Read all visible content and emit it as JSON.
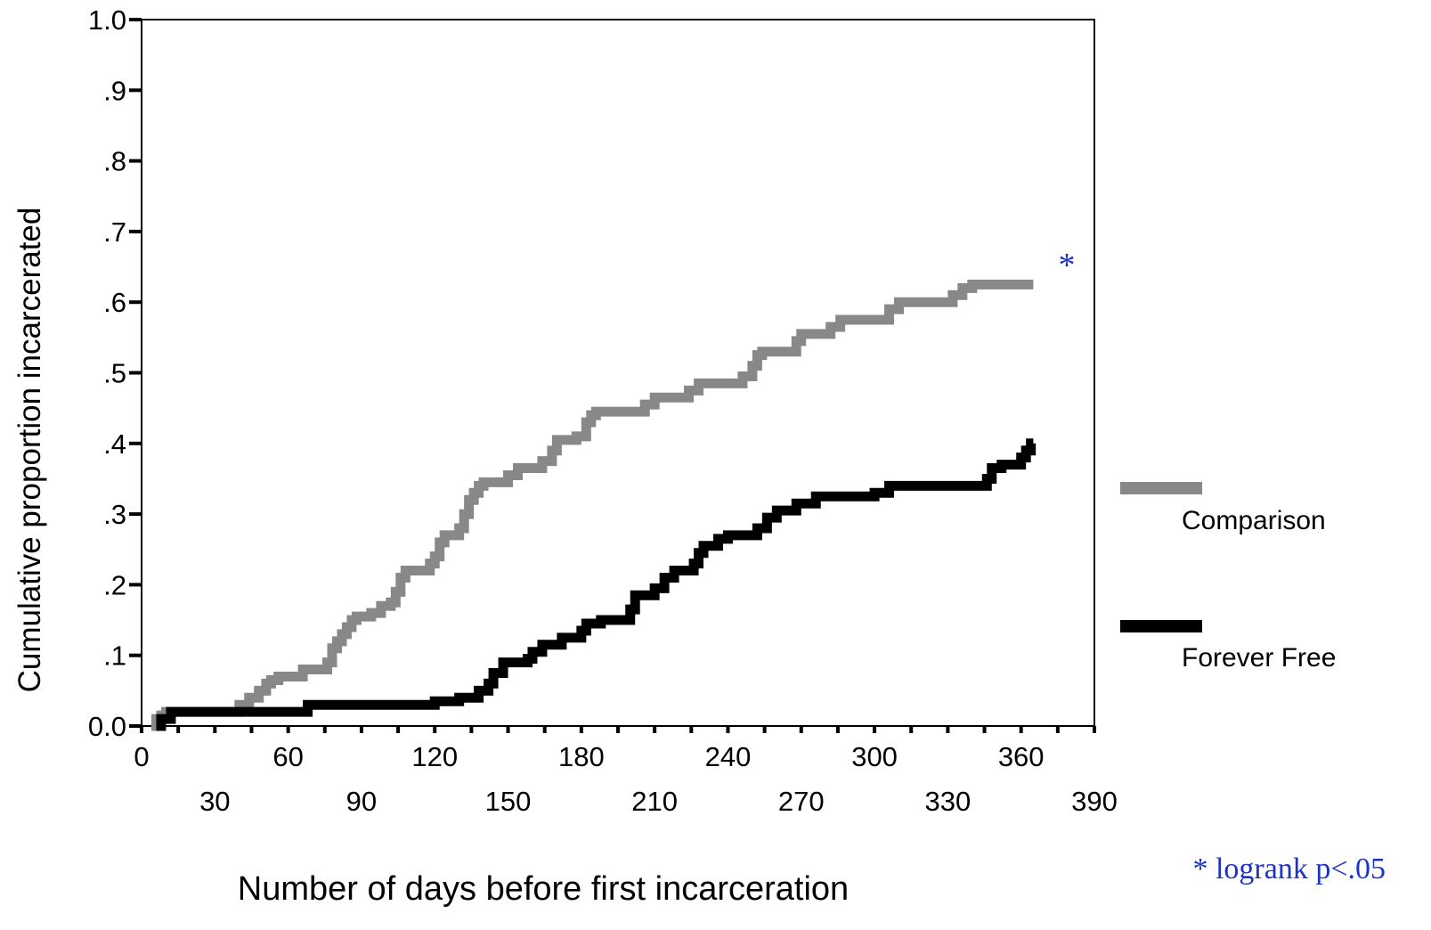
{
  "chart_data": {
    "type": "line",
    "step": true,
    "title": "",
    "xlabel": "Number of days before first incarceration",
    "ylabel": "Cumulative proportion incarcerated",
    "xlim": [
      0,
      390
    ],
    "ylim": [
      0,
      1.0
    ],
    "x_ticks_row1": [
      "0",
      "60",
      "120",
      "180",
      "240",
      "300",
      "360"
    ],
    "x_ticks_row2": [
      "30",
      "90",
      "150",
      "210",
      "270",
      "330",
      "390"
    ],
    "y_ticks": [
      {
        "value": 0.0,
        "label": "0.0"
      },
      {
        "value": 0.1,
        "label": ".1"
      },
      {
        "value": 0.2,
        "label": ".2"
      },
      {
        "value": 0.3,
        "label": ".3"
      },
      {
        "value": 0.4,
        "label": ".4"
      },
      {
        "value": 0.5,
        "label": ".5"
      },
      {
        "value": 0.6,
        "label": ".6"
      },
      {
        "value": 0.7,
        "label": ".7"
      },
      {
        "value": 0.8,
        "label": ".8"
      },
      {
        "value": 0.9,
        "label": ".9"
      },
      {
        "value": 1.0,
        "label": "1.0"
      }
    ],
    "grid": false,
    "legend_position": "right",
    "series": [
      {
        "name": "Comparison",
        "color": "#888888",
        "points": [
          [
            4,
            0.0
          ],
          [
            6,
            0.01
          ],
          [
            8,
            0.015
          ],
          [
            10,
            0.02
          ],
          [
            38,
            0.02
          ],
          [
            40,
            0.03
          ],
          [
            44,
            0.04
          ],
          [
            48,
            0.05
          ],
          [
            51,
            0.06
          ],
          [
            53,
            0.065
          ],
          [
            56,
            0.07
          ],
          [
            64,
            0.07
          ],
          [
            66,
            0.08
          ],
          [
            76,
            0.09
          ],
          [
            78,
            0.11
          ],
          [
            80,
            0.12
          ],
          [
            82,
            0.13
          ],
          [
            84,
            0.14
          ],
          [
            86,
            0.15
          ],
          [
            88,
            0.155
          ],
          [
            94,
            0.16
          ],
          [
            98,
            0.17
          ],
          [
            102,
            0.175
          ],
          [
            104,
            0.19
          ],
          [
            106,
            0.21
          ],
          [
            108,
            0.22
          ],
          [
            118,
            0.23
          ],
          [
            120,
            0.24
          ],
          [
            122,
            0.26
          ],
          [
            124,
            0.27
          ],
          [
            130,
            0.28
          ],
          [
            132,
            0.3
          ],
          [
            134,
            0.32
          ],
          [
            136,
            0.33
          ],
          [
            138,
            0.34
          ],
          [
            140,
            0.345
          ],
          [
            150,
            0.355
          ],
          [
            154,
            0.365
          ],
          [
            164,
            0.375
          ],
          [
            168,
            0.39
          ],
          [
            170,
            0.405
          ],
          [
            178,
            0.41
          ],
          [
            182,
            0.43
          ],
          [
            184,
            0.44
          ],
          [
            186,
            0.445
          ],
          [
            206,
            0.455
          ],
          [
            210,
            0.465
          ],
          [
            224,
            0.475
          ],
          [
            228,
            0.485
          ],
          [
            246,
            0.495
          ],
          [
            250,
            0.51
          ],
          [
            252,
            0.525
          ],
          [
            254,
            0.53
          ],
          [
            268,
            0.545
          ],
          [
            270,
            0.555
          ],
          [
            282,
            0.565
          ],
          [
            286,
            0.575
          ],
          [
            306,
            0.59
          ],
          [
            310,
            0.6
          ],
          [
            332,
            0.61
          ],
          [
            336,
            0.62
          ],
          [
            340,
            0.625
          ],
          [
            365,
            0.625
          ]
        ]
      },
      {
        "name": "Forever Free",
        "color": "#000000",
        "points": [
          [
            6,
            0.0
          ],
          [
            8,
            0.01
          ],
          [
            12,
            0.02
          ],
          [
            66,
            0.02
          ],
          [
            68,
            0.03
          ],
          [
            118,
            0.03
          ],
          [
            120,
            0.035
          ],
          [
            130,
            0.04
          ],
          [
            138,
            0.05
          ],
          [
            142,
            0.06
          ],
          [
            144,
            0.075
          ],
          [
            148,
            0.09
          ],
          [
            158,
            0.095
          ],
          [
            160,
            0.105
          ],
          [
            164,
            0.115
          ],
          [
            172,
            0.125
          ],
          [
            180,
            0.135
          ],
          [
            182,
            0.145
          ],
          [
            188,
            0.15
          ],
          [
            198,
            0.15
          ],
          [
            200,
            0.165
          ],
          [
            202,
            0.185
          ],
          [
            210,
            0.195
          ],
          [
            214,
            0.21
          ],
          [
            218,
            0.22
          ],
          [
            226,
            0.23
          ],
          [
            228,
            0.245
          ],
          [
            230,
            0.255
          ],
          [
            236,
            0.265
          ],
          [
            240,
            0.27
          ],
          [
            252,
            0.28
          ],
          [
            256,
            0.295
          ],
          [
            260,
            0.305
          ],
          [
            268,
            0.315
          ],
          [
            276,
            0.325
          ],
          [
            300,
            0.33
          ],
          [
            306,
            0.34
          ],
          [
            346,
            0.35
          ],
          [
            348,
            0.365
          ],
          [
            352,
            0.37
          ],
          [
            360,
            0.38
          ],
          [
            362,
            0.39
          ],
          [
            364,
            0.4
          ],
          [
            365,
            0.4
          ]
        ]
      }
    ],
    "annotations": {
      "marker": "*",
      "note": "* logrank p<.05"
    }
  }
}
